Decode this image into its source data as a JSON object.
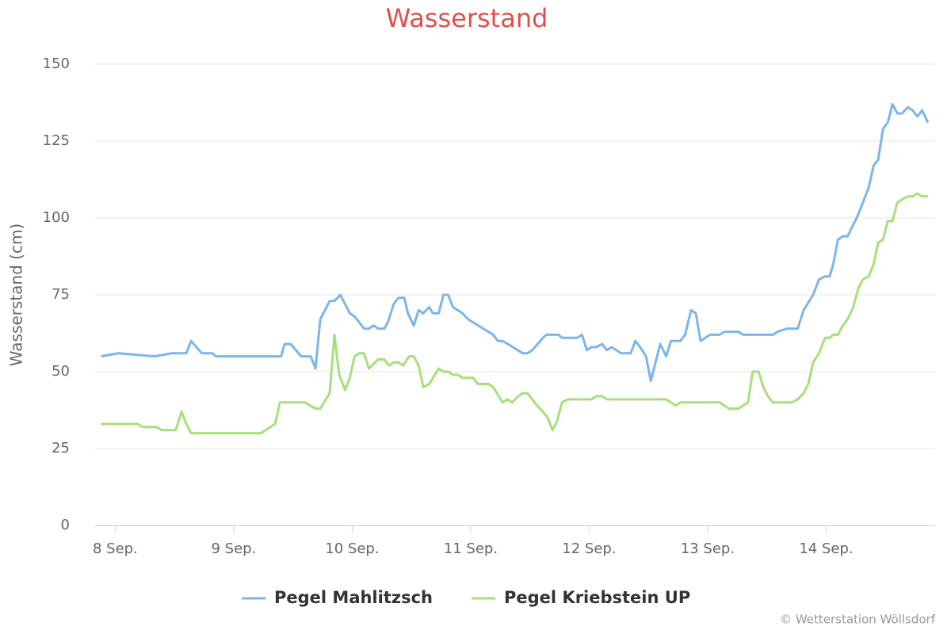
{
  "chart_data": {
    "type": "line",
    "title": "Wasserstand",
    "y_label": "Wasserstand (cm)",
    "credits": "© Wetterstation Wöllsdorf",
    "xlim": [
      7.83,
      14.92
    ],
    "xticks": [
      {
        "value": 8,
        "label": "8 Sep."
      },
      {
        "value": 9,
        "label": "9 Sep."
      },
      {
        "value": 10,
        "label": "10 Sep."
      },
      {
        "value": 11,
        "label": "11 Sep."
      },
      {
        "value": 12,
        "label": "12 Sep."
      },
      {
        "value": 13,
        "label": "13 Sep."
      },
      {
        "value": 14,
        "label": "14 Sep."
      }
    ],
    "ylim": [
      0,
      150
    ],
    "yticks": [
      0,
      25,
      50,
      75,
      100,
      125,
      150
    ],
    "grid": true,
    "legend": "bottom",
    "series": [
      {
        "name": "Pegel Mahlitzsch",
        "color": "#7cb5ec",
        "x": [
          7.88,
          8.03,
          8.33,
          8.48,
          8.6,
          8.64,
          8.73,
          8.82,
          8.85,
          9.4,
          9.43,
          9.48,
          9.57,
          9.65,
          9.69,
          9.73,
          9.81,
          9.85,
          9.9,
          9.98,
          10.02,
          10.1,
          10.14,
          10.18,
          10.22,
          10.27,
          10.3,
          10.35,
          10.39,
          10.44,
          10.47,
          10.52,
          10.56,
          10.6,
          10.65,
          10.68,
          10.73,
          10.77,
          10.81,
          10.85,
          10.93,
          10.98,
          11.19,
          11.23,
          11.27,
          11.44,
          11.48,
          11.52,
          11.61,
          11.64,
          11.74,
          11.77,
          11.9,
          11.94,
          11.98,
          12.02,
          12.06,
          12.11,
          12.15,
          12.19,
          12.27,
          12.35,
          12.39,
          12.43,
          12.48,
          12.52,
          12.6,
          12.65,
          12.69,
          12.77,
          12.81,
          12.86,
          12.9,
          12.94,
          13.02,
          13.1,
          13.14,
          13.26,
          13.3,
          13.55,
          13.59,
          13.67,
          13.76,
          13.81,
          13.89,
          13.94,
          13.99,
          14.03,
          14.06,
          14.1,
          14.14,
          14.18,
          14.27,
          14.36,
          14.4,
          14.44,
          14.48,
          14.52,
          14.56,
          14.6,
          14.64,
          14.69,
          14.73,
          14.77,
          14.81,
          14.86
        ],
        "values": [
          55,
          56,
          55,
          56,
          56,
          60,
          56,
          56,
          55,
          55,
          59,
          59,
          55,
          55,
          51,
          67,
          73,
          73,
          75,
          69,
          68,
          64,
          64,
          65,
          64,
          64,
          66,
          72,
          74,
          74,
          69,
          65,
          70,
          69,
          71,
          69,
          69,
          75,
          75,
          71,
          69,
          67,
          62,
          60,
          60,
          56,
          56,
          57,
          61,
          62,
          62,
          61,
          61,
          62,
          57,
          58,
          58,
          59,
          57,
          58,
          56,
          56,
          60,
          58,
          55,
          47,
          59,
          55,
          60,
          60,
          62,
          70,
          69,
          60,
          62,
          62,
          63,
          63,
          62,
          62,
          63,
          64,
          64,
          70,
          75,
          80,
          81,
          81,
          85,
          93,
          94,
          94,
          101,
          110,
          117,
          119,
          129,
          131,
          137,
          134,
          134,
          136,
          135,
          133,
          135,
          131
        ]
      },
      {
        "name": "Pegel Kriebstein UP",
        "color": "#a6e07a",
        "x": [
          7.88,
          8.19,
          8.23,
          8.35,
          8.39,
          8.51,
          8.56,
          8.6,
          8.64,
          9.23,
          9.35,
          9.39,
          9.6,
          9.69,
          9.73,
          9.81,
          9.85,
          9.89,
          9.94,
          9.98,
          10.02,
          10.06,
          10.1,
          10.14,
          10.22,
          10.27,
          10.31,
          10.35,
          10.39,
          10.43,
          10.48,
          10.52,
          10.56,
          10.6,
          10.65,
          10.73,
          10.77,
          10.81,
          10.85,
          10.89,
          10.93,
          11.02,
          11.06,
          11.15,
          11.19,
          11.27,
          11.31,
          11.35,
          11.4,
          11.44,
          11.48,
          11.56,
          11.61,
          11.65,
          11.69,
          11.73,
          11.77,
          11.82,
          12.02,
          12.06,
          12.11,
          12.15,
          12.65,
          12.69,
          12.73,
          12.77,
          13.1,
          13.18,
          13.26,
          13.34,
          13.38,
          13.43,
          13.47,
          13.51,
          13.55,
          13.71,
          13.76,
          13.81,
          13.85,
          13.89,
          13.94,
          13.99,
          14.03,
          14.06,
          14.1,
          14.14,
          14.18,
          14.23,
          14.27,
          14.31,
          14.36,
          14.4,
          14.44,
          14.48,
          14.52,
          14.56,
          14.6,
          14.64,
          14.69,
          14.73,
          14.77,
          14.81,
          14.86
        ],
        "values": [
          33,
          33,
          32,
          32,
          31,
          31,
          37,
          33,
          30,
          30,
          33,
          40,
          40,
          38,
          38,
          43,
          62,
          49,
          44,
          48,
          55,
          56,
          56,
          51,
          54,
          54,
          52,
          53,
          53,
          52,
          55,
          55,
          52,
          45,
          46,
          51,
          50,
          50,
          49,
          49,
          48,
          48,
          46,
          46,
          45,
          40,
          41,
          40,
          42,
          43,
          43,
          39,
          37,
          35,
          31,
          34,
          40,
          41,
          41,
          42,
          42,
          41,
          41,
          40,
          39,
          40,
          40,
          38,
          38,
          40,
          50,
          50,
          45,
          42,
          40,
          40,
          41,
          43,
          46,
          53,
          56,
          61,
          61,
          62,
          62,
          65,
          67,
          71,
          77,
          80,
          81,
          85,
          92,
          93,
          99,
          99,
          105,
          106,
          107,
          107,
          108,
          107,
          107
        ]
      }
    ]
  }
}
